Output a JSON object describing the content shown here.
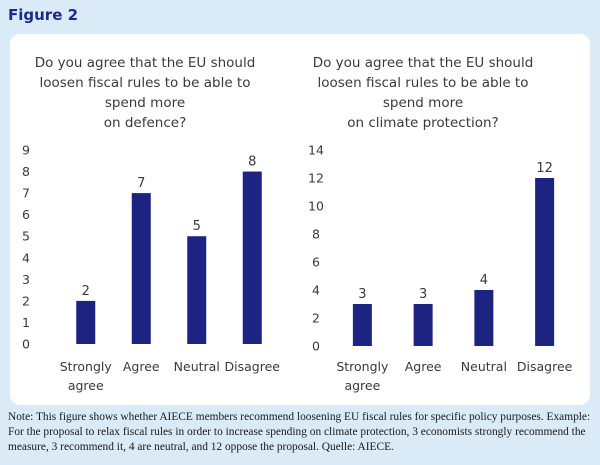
{
  "figure_label": "Figure 2",
  "note": "Note: This figure shows whether AIECE members recommend loosening EU fiscal rules for specific policy purposes. Example: For the proposal to relax fiscal rules in order to increase spending on climate protection, 3 economists strongly recommend the measure, 3 recommend it, 4 are neutral, and 12 oppose the proposal. Quelle: AIECE.",
  "colors": {
    "bar": "#1c2380",
    "text": "#3a3a3a",
    "page_bg": "#dbeaf7",
    "panel_bg": "#ffffff"
  },
  "chart_data": [
    {
      "type": "bar",
      "title": [
        "Do you agree that the EU should",
        "loosen fiscal rules to be able to",
        "spend more",
        "on defence?"
      ],
      "categories": [
        [
          "Strongly",
          "agree"
        ],
        [
          "Agree"
        ],
        [
          "Neutral"
        ],
        [
          "Disagree"
        ]
      ],
      "values": [
        2,
        7,
        5,
        8
      ],
      "ylim": [
        0,
        9
      ],
      "yticks": [
        0,
        1,
        2,
        3,
        4,
        5,
        6,
        7,
        8,
        9
      ],
      "grid": false,
      "data_labels": true
    },
    {
      "type": "bar",
      "title": [
        "Do you agree that the EU should",
        "loosen fiscal rules to be able to",
        "spend more",
        "on climate protection?"
      ],
      "categories": [
        [
          "Strongly",
          "agree"
        ],
        [
          "Agree"
        ],
        [
          "Neutral"
        ],
        [
          "Disagree"
        ]
      ],
      "values": [
        3,
        3,
        4,
        12
      ],
      "ylim": [
        0,
        14
      ],
      "yticks": [
        0,
        2,
        4,
        6,
        8,
        10,
        12,
        14
      ],
      "grid": false,
      "data_labels": true
    }
  ]
}
